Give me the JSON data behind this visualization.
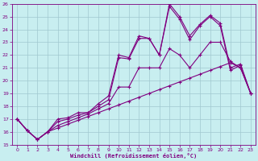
{
  "xlabel": "Windchill (Refroidissement éolien,°C)",
  "xlim": [
    -0.5,
    23.5
  ],
  "ylim": [
    15,
    26
  ],
  "yticks": [
    15,
    16,
    17,
    18,
    19,
    20,
    21,
    22,
    23,
    24,
    25,
    26
  ],
  "xticks": [
    0,
    1,
    2,
    3,
    4,
    5,
    6,
    7,
    8,
    9,
    10,
    11,
    12,
    13,
    14,
    15,
    16,
    17,
    18,
    19,
    20,
    21,
    22,
    23
  ],
  "background_color": "#c8eef0",
  "grid_color": "#a0c8d0",
  "line_color": "#800080",
  "line1_x": [
    0,
    1,
    2,
    3,
    4,
    5,
    6,
    7,
    8,
    9,
    10,
    11,
    12,
    13,
    14,
    15,
    16,
    17,
    18,
    19,
    20,
    21,
    22,
    23
  ],
  "line1_y": [
    17.0,
    16.1,
    15.4,
    16.0,
    16.3,
    16.6,
    16.9,
    17.2,
    17.5,
    17.8,
    18.1,
    18.4,
    18.7,
    19.0,
    19.3,
    19.6,
    19.9,
    20.2,
    20.5,
    20.8,
    21.1,
    21.4,
    21.0,
    19.0
  ],
  "line2_x": [
    0,
    1,
    2,
    3,
    4,
    5,
    6,
    7,
    8,
    9,
    10,
    11,
    12,
    13,
    14,
    15,
    16,
    17,
    18,
    19,
    20,
    21,
    22,
    23
  ],
  "line2_y": [
    17.0,
    16.1,
    15.4,
    16.0,
    16.5,
    16.8,
    17.1,
    17.4,
    17.8,
    18.2,
    19.5,
    19.5,
    21.0,
    21.0,
    21.0,
    22.5,
    22.0,
    21.0,
    22.0,
    23.0,
    23.0,
    21.5,
    21.0,
    19.0
  ],
  "line3_x": [
    0,
    1,
    2,
    3,
    4,
    5,
    6,
    7,
    8,
    9,
    10,
    11,
    12,
    13,
    14,
    15,
    16,
    17,
    18,
    19,
    20,
    21,
    22,
    23
  ],
  "line3_y": [
    17.0,
    16.1,
    15.4,
    16.0,
    16.8,
    17.0,
    17.3,
    17.5,
    18.0,
    18.5,
    21.8,
    21.7,
    23.3,
    23.3,
    22.0,
    25.8,
    24.8,
    23.2,
    24.3,
    25.0,
    24.3,
    20.8,
    21.2,
    19.0
  ],
  "line4_x": [
    0,
    1,
    2,
    3,
    4,
    5,
    6,
    7,
    8,
    9,
    10,
    11,
    12,
    13,
    14,
    15,
    16,
    17,
    18,
    19,
    20,
    21,
    22,
    23
  ],
  "line4_y": [
    17.0,
    16.1,
    15.4,
    16.0,
    17.0,
    17.1,
    17.5,
    17.5,
    18.2,
    18.8,
    22.0,
    21.8,
    23.5,
    23.3,
    22.0,
    26.0,
    25.0,
    23.5,
    24.4,
    25.1,
    24.5,
    21.0,
    21.3,
    19.0
  ]
}
